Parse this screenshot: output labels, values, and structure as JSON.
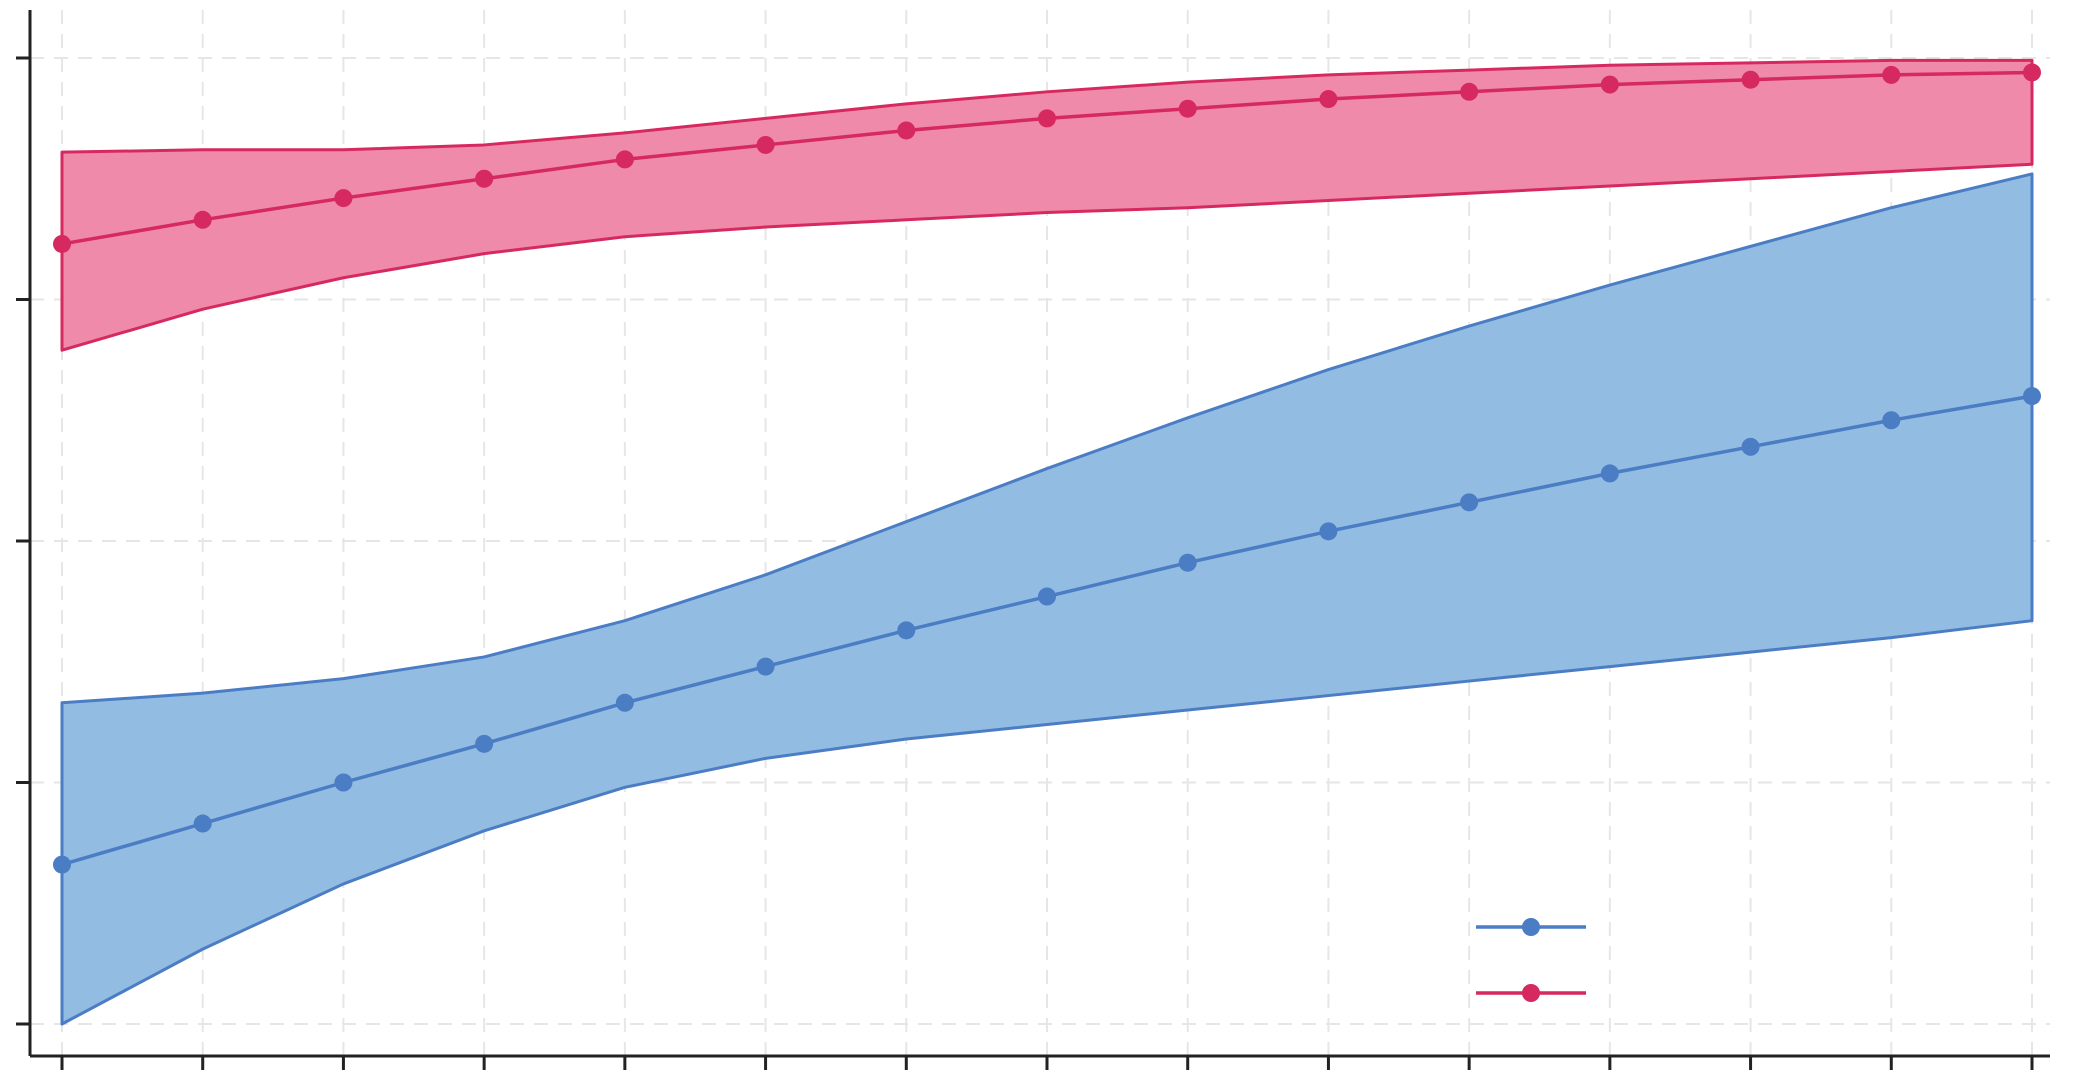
{
  "chart_data": {
    "type": "line",
    "grid": true,
    "legend_position": "bottom-right",
    "x": [
      1,
      2,
      3,
      4,
      5,
      6,
      7,
      8,
      9,
      10,
      11,
      12,
      13,
      14,
      15
    ],
    "xlim": [
      1,
      15
    ],
    "ylim": [
      0,
      4
    ],
    "yticks": [
      0,
      1,
      2,
      3,
      4
    ],
    "series": [
      {
        "color": "#d6295f",
        "band_fill": "#ef8aab",
        "values": [
          3.23,
          3.33,
          3.42,
          3.5,
          3.58,
          3.64,
          3.7,
          3.75,
          3.79,
          3.83,
          3.86,
          3.89,
          3.91,
          3.93,
          3.94
        ],
        "lower": [
          2.79,
          2.96,
          3.09,
          3.19,
          3.26,
          3.3,
          3.33,
          3.36,
          3.38,
          3.41,
          3.44,
          3.47,
          3.5,
          3.53,
          3.56
        ],
        "upper": [
          3.61,
          3.62,
          3.62,
          3.64,
          3.69,
          3.75,
          3.81,
          3.86,
          3.9,
          3.93,
          3.95,
          3.97,
          3.98,
          3.99,
          3.99
        ]
      },
      {
        "color": "#4a7dc4",
        "band_fill": "#93bce3",
        "values": [
          0.66,
          0.83,
          1.0,
          1.16,
          1.33,
          1.48,
          1.63,
          1.77,
          1.91,
          2.04,
          2.16,
          2.28,
          2.39,
          2.5,
          2.6
        ],
        "lower": [
          0.0,
          0.31,
          0.58,
          0.8,
          0.98,
          1.1,
          1.18,
          1.24,
          1.3,
          1.36,
          1.42,
          1.48,
          1.54,
          1.6,
          1.67
        ],
        "upper": [
          1.33,
          1.37,
          1.43,
          1.52,
          1.67,
          1.86,
          2.08,
          2.3,
          2.51,
          2.71,
          2.89,
          3.06,
          3.22,
          3.38,
          3.52
        ]
      }
    ]
  }
}
